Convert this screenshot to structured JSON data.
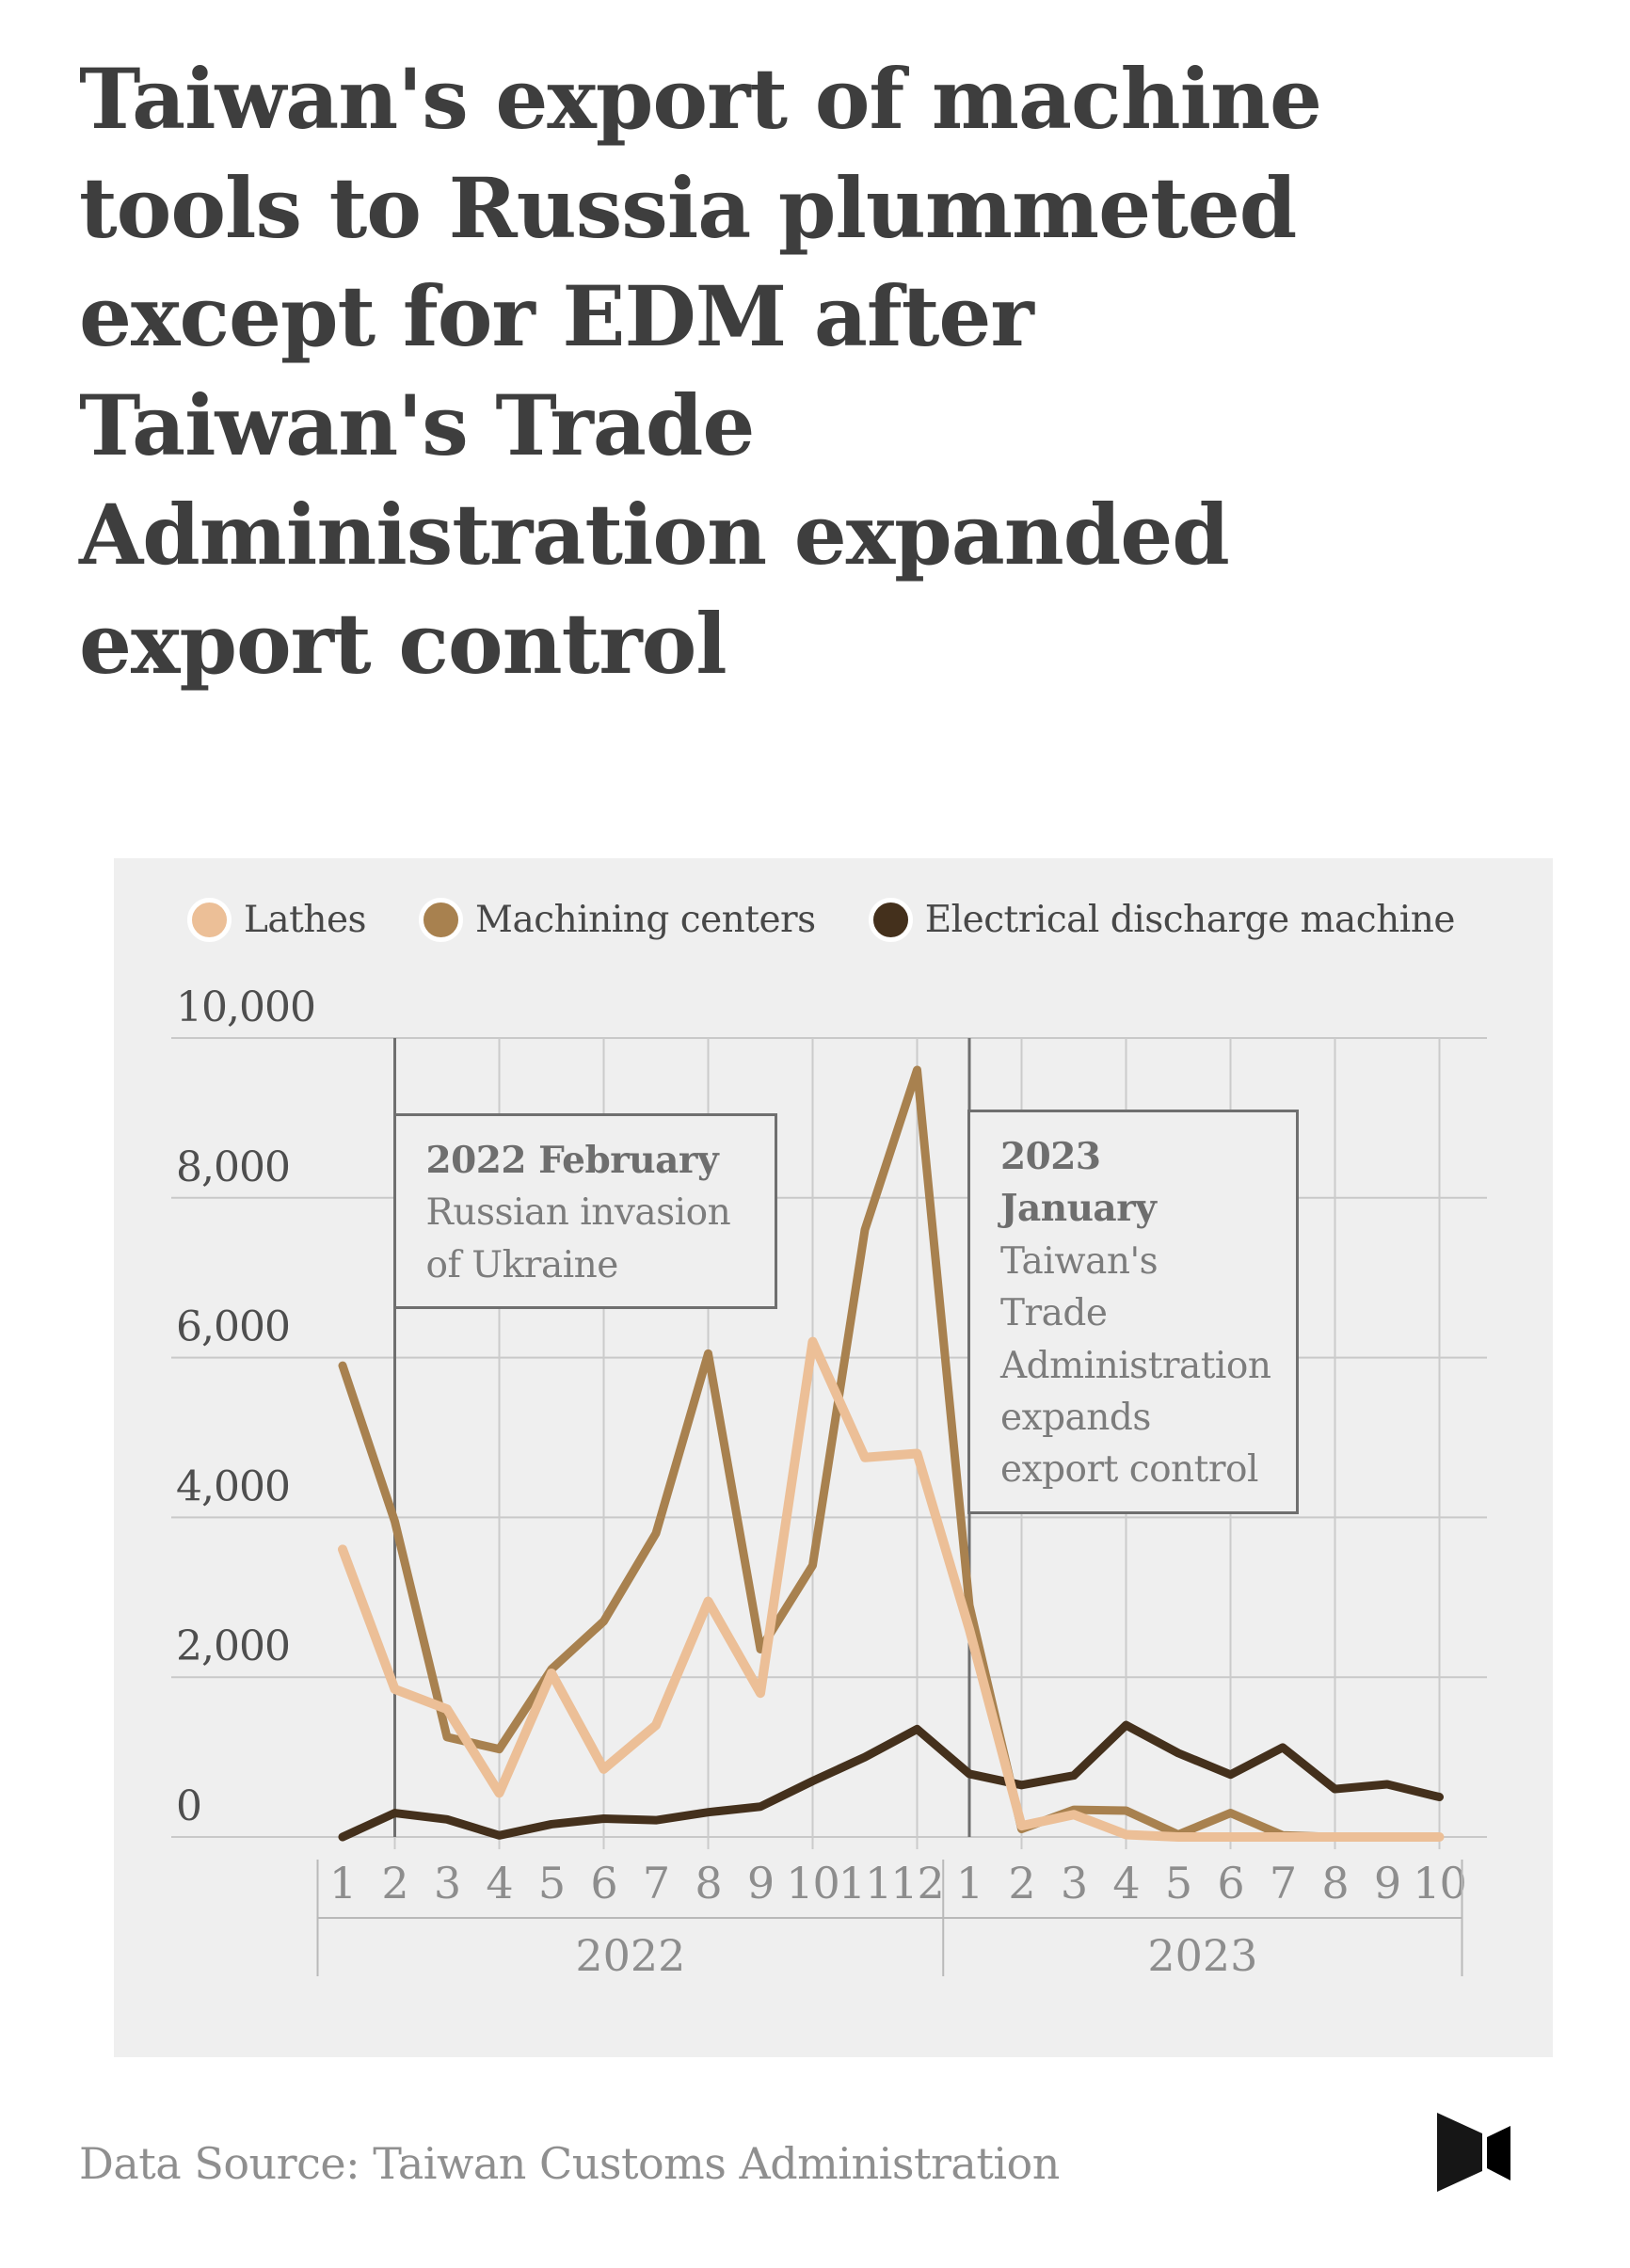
{
  "title": "Taiwan's export of machine\ntools to Russia plummeted\nexcept for EDM after\nTaiwan's Trade\nAdministration expanded\nexport control",
  "footer": {
    "source": "Data Source: Taiwan Customs Administration"
  },
  "colors": {
    "lathes": "#ecbf97",
    "machining_centers": "#a8814f",
    "edm": "#44301c",
    "panel_background": "#efefef",
    "gridline": "#c9c9c9",
    "event_line": "#6f6f6f",
    "title_text": "#3e3e3e",
    "axis_text": "#8d8d8d"
  },
  "chart_data": {
    "type": "line",
    "title": "",
    "xlabel": "",
    "ylabel": "",
    "ylim": [
      0,
      10000
    ],
    "yticks": [
      0,
      2000,
      4000,
      6000,
      8000,
      10000
    ],
    "ytick_labels": [
      "0",
      "2,000",
      "4,000",
      "6,000",
      "8,000",
      "10,000"
    ],
    "grid": "horizontal gridlines at yticks, vertical gridlines at even months",
    "legend_position": "top",
    "x_months": [
      "1",
      "2",
      "3",
      "4",
      "5",
      "6",
      "7",
      "8",
      "9",
      "10",
      "11",
      "12",
      "1",
      "2",
      "3",
      "4",
      "5",
      "6",
      "7",
      "8",
      "9",
      "10"
    ],
    "x_years": [
      {
        "label": "2022",
        "months": 12
      },
      {
        "label": "2023",
        "months": 10
      }
    ],
    "series": [
      {
        "name": "Lathes",
        "color": "#ecbf97",
        "values": [
          3600,
          1850,
          1600,
          550,
          2050,
          850,
          1400,
          2950,
          1800,
          6200,
          4750,
          4800,
          2600,
          140,
          280,
          30,
          0,
          0,
          0,
          0,
          0,
          0
        ]
      },
      {
        "name": "Machining centers",
        "color": "#a8814f",
        "values": [
          5900,
          3950,
          1250,
          1100,
          2100,
          2700,
          3800,
          6050,
          2350,
          3400,
          7600,
          9600,
          2900,
          100,
          340,
          330,
          30,
          300,
          20,
          0,
          0,
          0
        ]
      },
      {
        "name": "Electrical discharge machine",
        "color": "#44301c",
        "values": [
          0,
          300,
          220,
          20,
          160,
          230,
          210,
          310,
          380,
          700,
          1000,
          1350,
          790,
          650,
          770,
          1400,
          1050,
          780,
          1120,
          600,
          660,
          500
        ]
      }
    ],
    "annotations": [
      {
        "month_index": 1,
        "title": "2022 February",
        "body": "Russian invasion of Ukraine"
      },
      {
        "month_index": 12,
        "title": "2023 January",
        "body": "Taiwan's Trade Administration expands export control"
      }
    ]
  }
}
